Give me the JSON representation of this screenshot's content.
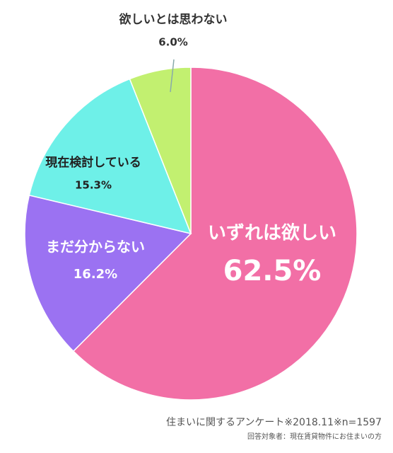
{
  "chart_data": {
    "type": "pie",
    "categories": [
      "いずれは欲しい",
      "まだ分からない",
      "現在検討している",
      "欲しいとは思わない"
    ],
    "values": [
      62.5,
      16.2,
      15.3,
      6.0
    ],
    "value_labels": [
      "62.5%",
      "16.2%",
      "15.3%",
      "6.0%"
    ],
    "colors": [
      "#f26fa6",
      "#9b72f2",
      "#6ef0e8",
      "#c2f070"
    ],
    "footnotes": [
      "住まいに関するアンケート※2018.11※n=1597",
      "回答対象者：現在賃貸物件にお住まいの方"
    ]
  }
}
